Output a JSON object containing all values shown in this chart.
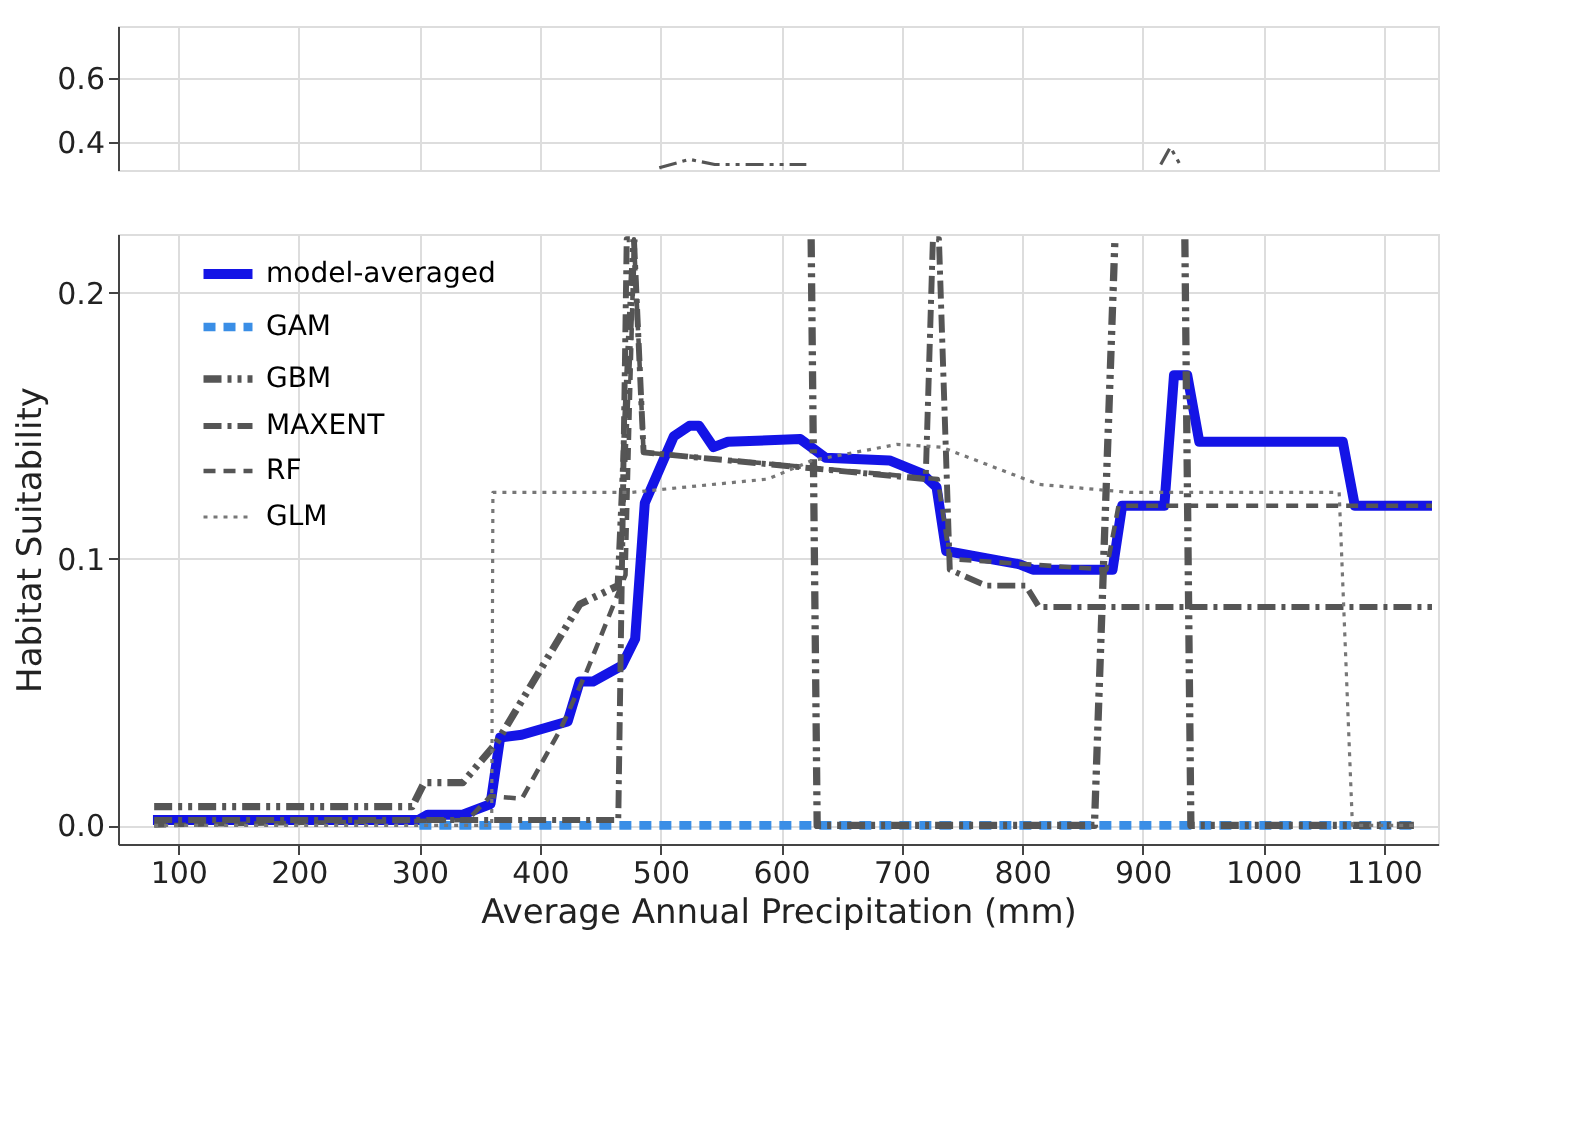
{
  "chart_data": [
    {
      "type": "line",
      "xlim": [
        50,
        1145
      ],
      "xticks": [
        100,
        200,
        300,
        400,
        500,
        600,
        700,
        800,
        900,
        1000,
        1100
      ],
      "ylim": [
        0.313,
        0.76
      ],
      "yticks": [
        0.4,
        0.6
      ],
      "tick_labels": "y",
      "grid": true,
      "series": [
        {
          "color": "#555555",
          "line_style": "dashdotdot",
          "x": [
            499,
            524,
            545,
            621
          ],
          "values": [
            0.32,
            0.346,
            0.33,
            0.33
          ]
        },
        {
          "color": "#555555",
          "line_style": "dashdotdot",
          "x": [
            915,
            923,
            931
          ],
          "values": [
            0.33,
            0.384,
            0.33
          ]
        }
      ]
    },
    {
      "type": "line",
      "xlim": [
        50,
        1145
      ],
      "xticks": [
        100,
        200,
        300,
        400,
        500,
        600,
        700,
        800,
        900,
        1000,
        1100
      ],
      "ylim": [
        -0.007,
        0.222
      ],
      "yticks": [
        {
          "value": 0.0,
          "label": "0.0"
        },
        0.1,
        0.2
      ],
      "xlabel": "Average Annual Precipitation (mm)",
      "ylabel": "Habitat Suitability",
      "grid": true,
      "legend": "top left",
      "series": [
        {
          "name": "model-averaged",
          "color": "#1414e6",
          "line_style": "solid",
          "x": [
            79,
            299,
            307,
            336,
            359,
            367,
            385,
            423,
            433,
            444,
            468,
            479,
            487,
            511,
            524,
            532,
            544,
            556,
            616,
            637,
            690,
            717,
            729,
            737,
            798,
            809,
            875,
            883,
            918,
            926,
            937,
            947,
            1066,
            1076,
            1140
          ],
          "values": [
            0.002,
            0.002,
            0.004,
            0.004,
            0.008,
            0.033,
            0.034,
            0.039,
            0.054,
            0.054,
            0.06,
            0.07,
            0.121,
            0.146,
            0.15,
            0.15,
            0.142,
            0.144,
            0.145,
            0.138,
            0.137,
            0.132,
            0.127,
            0.103,
            0.098,
            0.096,
            0.096,
            0.12,
            0.12,
            0.169,
            0.169,
            0.144,
            0.144,
            0.12,
            0.12
          ]
        },
        {
          "name": "GAM",
          "color": "#3a8ee6",
          "line_style": "dashed",
          "x": [
            300,
            1125
          ],
          "values": [
            0.0,
            0.0
          ]
        },
        {
          "name": "GBM",
          "color": "#555555",
          "line_style": "dashdotdot",
          "x": [
            80,
            294,
            304,
            336,
            364,
            433,
            465,
            478,
            550,
            625,
            630,
            860,
            870,
            877,
            905,
            935,
            940,
            1125
          ],
          "values": [
            0.007,
            0.007,
            0.016,
            0.016,
            0.031,
            0.083,
            0.09,
            0.22,
            null,
            0.22,
            0.0,
            0.0,
            0.13,
            0.22,
            null,
            0.22,
            0.0,
            0.0
          ]
        },
        {
          "name": "MAXENT",
          "color": "#555555",
          "line_style": "dashdot",
          "x": [
            80,
            465,
            472,
            478,
            486,
            720,
            726,
            731,
            740,
            770,
            803,
            814,
            1140
          ],
          "values": [
            0.002,
            0.002,
            0.22,
            0.22,
            0.14,
            0.13,
            0.22,
            0.22,
            0.096,
            0.09,
            0.09,
            0.082,
            0.082
          ]
        },
        {
          "name": "RF",
          "color": "#555555",
          "line_style": "dashed",
          "x": [
            80,
            340,
            359,
            385,
            417,
            439,
            471,
            478,
            486,
            730,
            740,
            870,
            880,
            1140
          ],
          "values": [
            0.0,
            0.002,
            0.011,
            0.01,
            0.036,
            0.058,
            0.094,
            0.22,
            0.14,
            0.13,
            0.1,
            0.096,
            0.12,
            0.12
          ]
        },
        {
          "name": "GLM",
          "color": "#777777",
          "line_style": "dotted",
          "x": [
            80,
            360,
            361,
            476,
            589,
            626,
            696,
            733,
            814,
            889,
            1063,
            1074,
            1125
          ],
          "values": [
            0.0,
            0.0,
            0.125,
            0.125,
            0.13,
            0.137,
            0.143,
            0.142,
            0.128,
            0.125,
            0.125,
            0.0,
            0.0
          ]
        }
      ]
    }
  ]
}
